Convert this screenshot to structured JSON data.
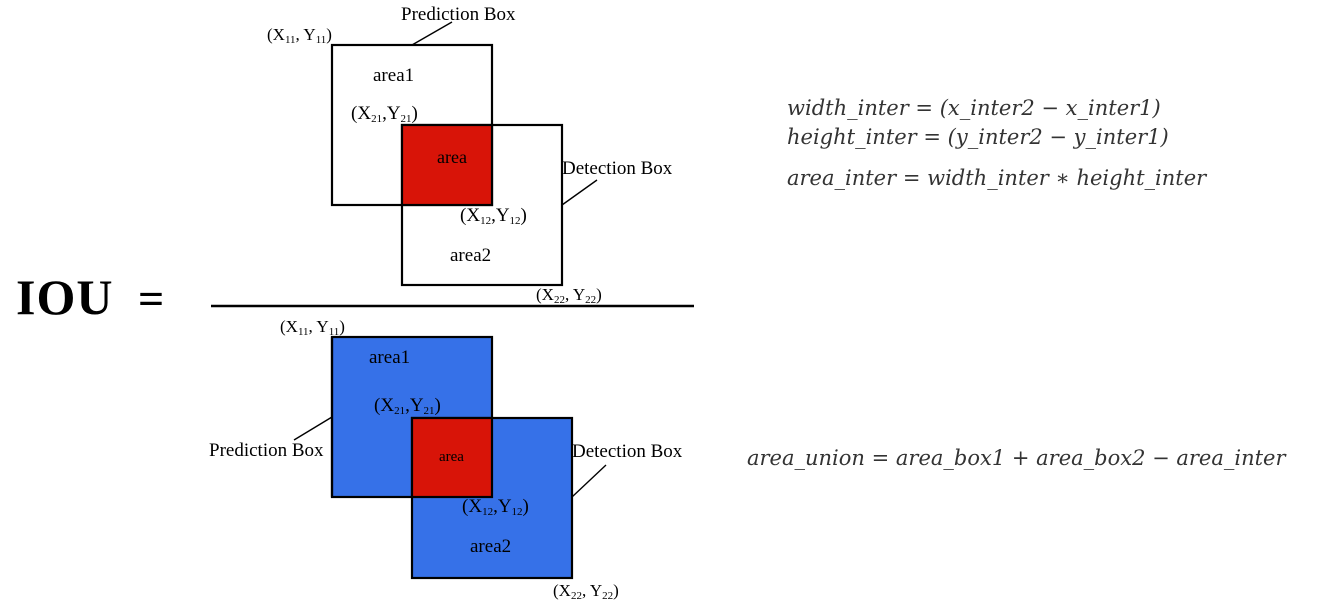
{
  "lhs": {
    "label": "IOU",
    "equals": "="
  },
  "colors": {
    "intersection": "#d81408",
    "union_fill": "#3671e8",
    "stroke": "#000000",
    "background": "#ffffff"
  },
  "numerator": {
    "prediction_box_label": "Prediction Box",
    "detection_box_label": "Detection Box",
    "area1_label": "area1",
    "area_label": "area",
    "area2_label": "area2",
    "coords": {
      "p11": {
        "x": "X",
        "x_sub": "11",
        "sep": ", ",
        "y": "Y",
        "y_sub": "11"
      },
      "p21": {
        "x": "X",
        "x_sub": "21",
        "sep": ",",
        "y": "Y",
        "y_sub": "21"
      },
      "p12": {
        "x": "X",
        "x_sub": "12",
        "sep": ",",
        "y": "Y",
        "y_sub": "12"
      },
      "p22": {
        "x": "X",
        "x_sub": "22",
        "sep": ", ",
        "y": "Y",
        "y_sub": "22"
      }
    }
  },
  "denominator": {
    "prediction_box_label": "Prediction Box",
    "detection_box_label": "Detection Box",
    "area1_label": "area1",
    "area_label": "area",
    "area2_label": "area2",
    "coords": {
      "p11": {
        "x": "X",
        "x_sub": "11",
        "sep": ", ",
        "y": "Y",
        "y_sub": "11"
      },
      "p21": {
        "x": "X",
        "x_sub": "21",
        "sep": ",",
        "y": "Y",
        "y_sub": "21"
      },
      "p12": {
        "x": "X",
        "x_sub": "12",
        "sep": ",",
        "y": "Y",
        "y_sub": "12"
      },
      "p22": {
        "x": "X",
        "x_sub": "22",
        "sep": ", ",
        "y": "Y",
        "y_sub": "22"
      }
    }
  },
  "formulas": {
    "width_inter": "width_inter = (x_inter2 − x_inter1)",
    "height_inter": "height_inter = (y_inter2 − y_inter1)",
    "area_inter": "area_inter = width_inter  ∗  height_inter",
    "area_union": "area_union = area_box1  +  area_box2  −  area_inter"
  }
}
